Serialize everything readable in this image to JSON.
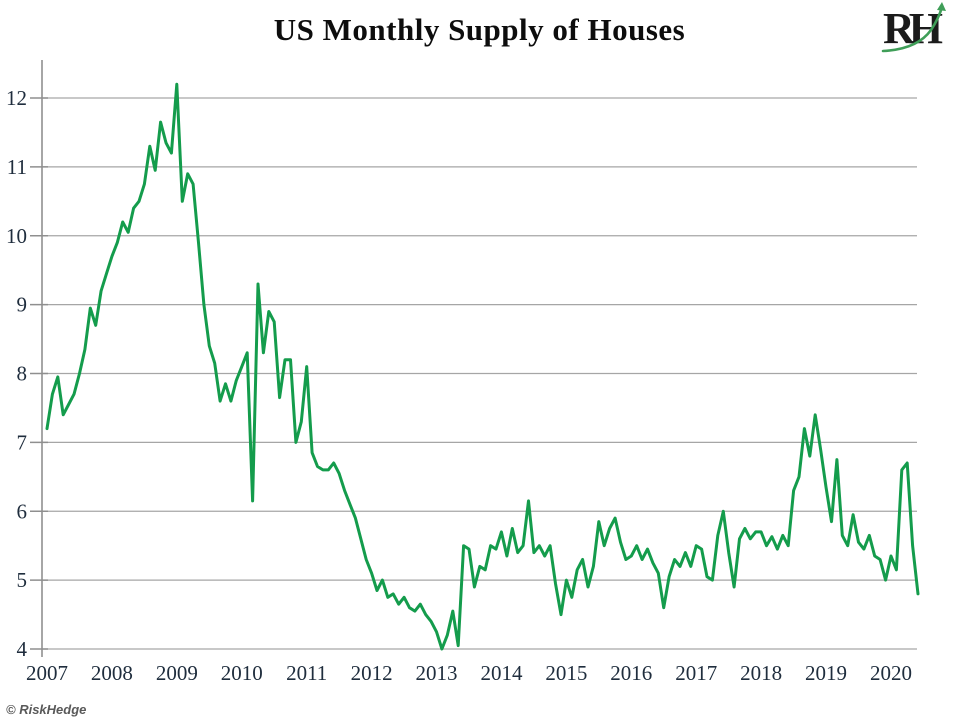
{
  "title": "US Monthly Supply of Houses",
  "logo": {
    "text": "RH"
  },
  "attribution": "© RiskHedge",
  "colors": {
    "line": "#149c4c",
    "grid": "#a6a6a6",
    "axis": "#8f8f8f",
    "tick_label": "#1f2d3d",
    "title": "#0d0d0d",
    "attribution": "#595959",
    "logo_swoosh": "#3f9e58"
  },
  "chart_data": {
    "type": "line",
    "title": "US Monthly Supply of Houses",
    "frequency": "monthly",
    "x_start": "2007-01",
    "x_end": "2020-06",
    "x_tick_labels": [
      "2007",
      "2008",
      "2009",
      "2010",
      "2011",
      "2012",
      "2013",
      "2014",
      "2015",
      "2016",
      "2017",
      "2018",
      "2019",
      "2020"
    ],
    "y_ticks": [
      4,
      5,
      6,
      7,
      8,
      9,
      10,
      11,
      12
    ],
    "ylim": [
      4,
      12.4
    ],
    "grid": "horizontal",
    "legend_position": "none",
    "series": [
      {
        "name": "US monthly supply of houses (months)",
        "color": "#149c4c",
        "values": [
          7.2,
          7.7,
          7.95,
          7.4,
          7.55,
          7.7,
          8.0,
          8.35,
          8.95,
          8.7,
          9.2,
          9.45,
          9.7,
          9.9,
          10.2,
          10.05,
          10.4,
          10.5,
          10.75,
          11.3,
          10.95,
          11.65,
          11.35,
          11.2,
          12.2,
          10.5,
          10.9,
          10.75,
          9.9,
          9.0,
          8.4,
          8.15,
          7.6,
          7.85,
          7.6,
          7.9,
          8.1,
          8.3,
          6.15,
          9.3,
          8.3,
          8.9,
          8.75,
          7.65,
          8.2,
          8.2,
          7.0,
          7.3,
          8.1,
          6.85,
          6.65,
          6.6,
          6.6,
          6.7,
          6.55,
          6.3,
          6.1,
          5.9,
          5.6,
          5.3,
          5.1,
          4.85,
          5.0,
          4.75,
          4.8,
          4.65,
          4.75,
          4.6,
          4.55,
          4.65,
          4.5,
          4.4,
          4.25,
          4.0,
          4.2,
          4.55,
          4.05,
          5.5,
          5.45,
          4.9,
          5.2,
          5.15,
          5.5,
          5.45,
          5.7,
          5.35,
          5.75,
          5.4,
          5.5,
          6.15,
          5.4,
          5.5,
          5.35,
          5.5,
          4.95,
          4.5,
          5.0,
          4.75,
          5.15,
          5.3,
          4.9,
          5.2,
          5.85,
          5.5,
          5.75,
          5.9,
          5.55,
          5.3,
          5.35,
          5.5,
          5.3,
          5.45,
          5.25,
          5.1,
          4.6,
          5.05,
          5.3,
          5.2,
          5.4,
          5.2,
          5.5,
          5.45,
          5.05,
          5.0,
          5.65,
          6.0,
          5.4,
          4.9,
          5.6,
          5.75,
          5.6,
          5.7,
          5.7,
          5.5,
          5.63,
          5.45,
          5.65,
          5.5,
          6.3,
          6.5,
          7.2,
          6.8,
          7.4,
          6.9,
          6.35,
          5.85,
          6.75,
          5.65,
          5.5,
          5.95,
          5.55,
          5.45,
          5.65,
          5.35,
          5.3,
          5.0,
          5.35,
          5.15,
          6.6,
          6.7,
          5.5,
          4.8
        ]
      }
    ]
  }
}
